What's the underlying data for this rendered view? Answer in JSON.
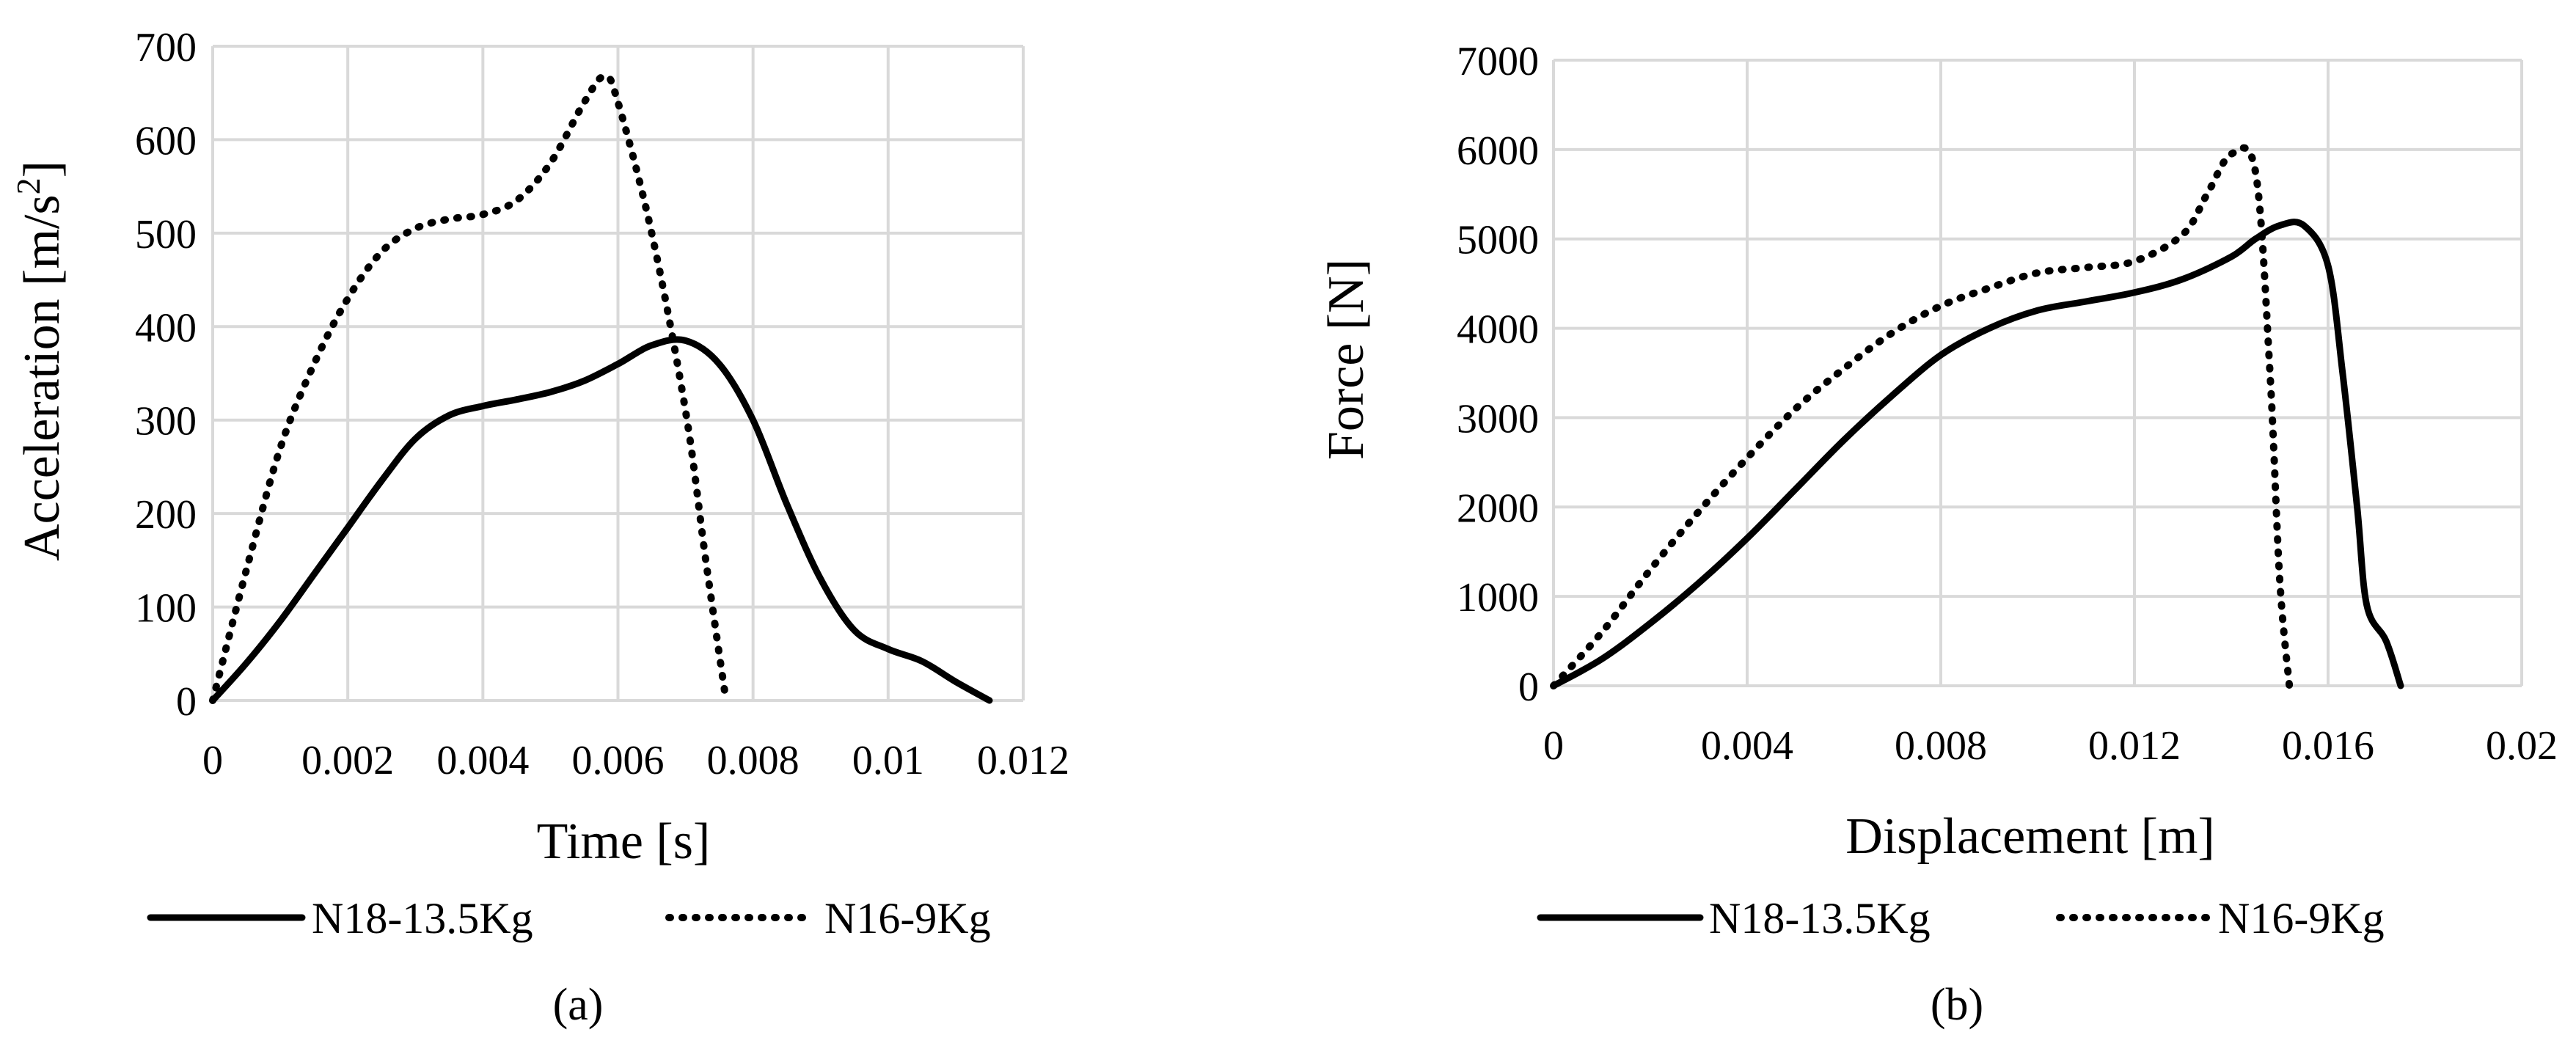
{
  "chart_data": [
    {
      "type": "line",
      "caption": "(a)",
      "xlabel": "Time [s]",
      "ylabel_main": "Acceleration [m/s",
      "ylabel_sup": "2",
      "ylabel_end": "]",
      "xlim": [
        0,
        0.012
      ],
      "ylim": [
        0,
        700
      ],
      "xticks": [
        0,
        0.002,
        0.004,
        0.006,
        0.008,
        0.01,
        0.012
      ],
      "xtick_labels": [
        "0",
        "0.002",
        "0.004",
        "0.006",
        "0.008",
        "0.01",
        "0.012"
      ],
      "yticks": [
        0,
        100,
        200,
        300,
        400,
        500,
        600,
        700
      ],
      "ytick_labels": [
        "0",
        "100",
        "200",
        "300",
        "400",
        "500",
        "600",
        "700"
      ],
      "grid": true,
      "legend_position": "bottom",
      "series": [
        {
          "name": "N18-13.5Kg",
          "style": "solid",
          "x": [
            0,
            0.0005,
            0.001,
            0.0015,
            0.002,
            0.0025,
            0.003,
            0.0035,
            0.004,
            0.0045,
            0.005,
            0.0055,
            0.006,
            0.0065,
            0.007,
            0.0075,
            0.008,
            0.0085,
            0.009,
            0.0095,
            0.01,
            0.0105,
            0.011,
            0.0115
          ],
          "y": [
            0,
            40,
            85,
            135,
            185,
            235,
            280,
            305,
            315,
            322,
            330,
            342,
            360,
            380,
            385,
            360,
            300,
            210,
            130,
            75,
            55,
            42,
            20,
            0
          ]
        },
        {
          "name": "N16-9Kg",
          "style": "dotted",
          "x": [
            0,
            0.0005,
            0.001,
            0.0015,
            0.002,
            0.0025,
            0.003,
            0.0035,
            0.004,
            0.0045,
            0.005,
            0.0055,
            0.0058,
            0.006,
            0.0065,
            0.007,
            0.0073,
            0.0076
          ],
          "y": [
            0,
            140,
            270,
            360,
            430,
            480,
            505,
            515,
            520,
            535,
            575,
            640,
            668,
            640,
            500,
            310,
            150,
            0
          ]
        }
      ]
    },
    {
      "type": "line",
      "caption": "(b)",
      "xlabel": "Displacement [m]",
      "ylabel": "Force [N]",
      "xlim": [
        0,
        0.02
      ],
      "ylim": [
        0,
        7000
      ],
      "xticks": [
        0,
        0.004,
        0.008,
        0.012,
        0.016,
        0.02
      ],
      "xtick_labels": [
        "0",
        "0.004",
        "0.008",
        "0.012",
        "0.016",
        "0.02"
      ],
      "yticks": [
        0,
        1000,
        2000,
        3000,
        4000,
        5000,
        6000,
        7000
      ],
      "ytick_labels": [
        "0",
        "1000",
        "2000",
        "3000",
        "4000",
        "5000",
        "6000",
        "7000"
      ],
      "grid": true,
      "legend_position": "bottom",
      "series": [
        {
          "name": "N18-13.5Kg",
          "style": "solid",
          "x": [
            0,
            0.001,
            0.002,
            0.003,
            0.004,
            0.005,
            0.006,
            0.007,
            0.008,
            0.009,
            0.01,
            0.011,
            0.012,
            0.013,
            0.014,
            0.0145,
            0.015,
            0.0155,
            0.016,
            0.0163,
            0.0166,
            0.0168,
            0.0172,
            0.0175
          ],
          "y": [
            0,
            300,
            700,
            1150,
            1650,
            2200,
            2750,
            3250,
            3700,
            4000,
            4200,
            4300,
            4400,
            4550,
            4800,
            5000,
            5150,
            5150,
            4700,
            3500,
            2000,
            900,
            500,
            0
          ]
        },
        {
          "name": "N16-9Kg",
          "style": "dotted",
          "x": [
            0,
            0.001,
            0.002,
            0.003,
            0.004,
            0.005,
            0.006,
            0.007,
            0.008,
            0.009,
            0.01,
            0.011,
            0.012,
            0.013,
            0.0135,
            0.014,
            0.0145,
            0.0148,
            0.015,
            0.0152
          ],
          "y": [
            0,
            600,
            1300,
            1950,
            2550,
            3100,
            3550,
            3950,
            4250,
            4450,
            4620,
            4680,
            4750,
            5050,
            5500,
            5950,
            5750,
            3500,
            1200,
            0
          ]
        }
      ]
    }
  ]
}
